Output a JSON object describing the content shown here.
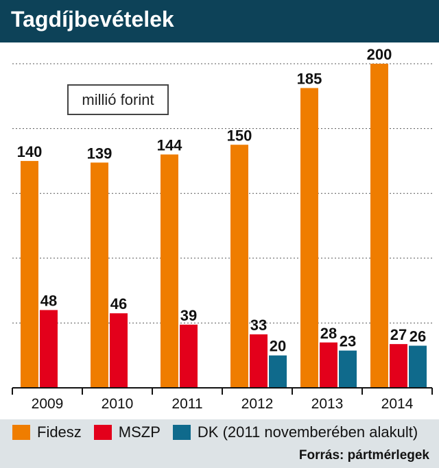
{
  "title": "Tagdíjbevételek",
  "unit_label": "millió forint",
  "source": "Forrás: pártmérlegek",
  "colors": {
    "header": "#0d4258",
    "fidesz": "#ef7d00",
    "mszp": "#e3001b",
    "dk": "#0f6a8c",
    "legend_band": "#dde3e6"
  },
  "chart_data": {
    "type": "bar",
    "categories": [
      "2009",
      "2010",
      "2011",
      "2012",
      "2013",
      "2014"
    ],
    "series": [
      {
        "name": "Fidesz",
        "values": [
          140,
          139,
          144,
          150,
          185,
          200
        ]
      },
      {
        "name": "MSZP",
        "values": [
          48,
          46,
          39,
          33,
          28,
          27
        ]
      },
      {
        "name": "DK (2011 novemberében alakult)",
        "values": [
          null,
          null,
          null,
          20,
          23,
          26
        ]
      }
    ],
    "ylim": [
      0,
      200
    ],
    "grid": true,
    "legend": "bottom"
  }
}
